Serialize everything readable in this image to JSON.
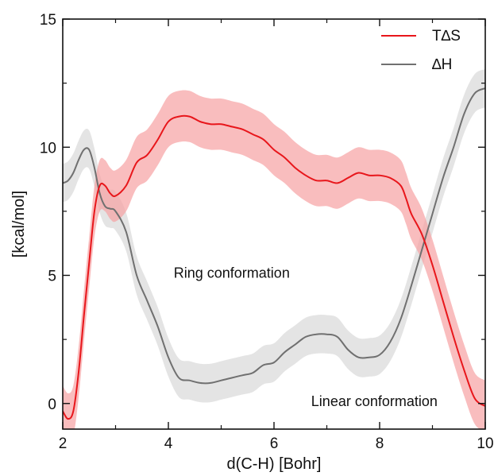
{
  "chart_data": {
    "type": "line",
    "xlabel": "d(C-H) [Bohr]",
    "ylabel": "[kcal/mol]",
    "xlim": [
      2,
      10
    ],
    "ylim": [
      -1,
      15
    ],
    "x_ticks": [
      "2",
      "4",
      "6",
      "8",
      "10"
    ],
    "y_ticks": [
      "0",
      "5",
      "10",
      "15"
    ],
    "grid": false,
    "legend_position": "top-right",
    "annotations": [
      "Ring conformation",
      "Linear conformation"
    ],
    "series": [
      {
        "name": "T∆S",
        "color": "#e8161b",
        "band_color": "#f6a1a3",
        "x": [
          2.0,
          2.1,
          2.2,
          2.3,
          2.4,
          2.5,
          2.6,
          2.7,
          2.8,
          2.9,
          3.0,
          3.2,
          3.4,
          3.6,
          3.8,
          4.0,
          4.2,
          4.4,
          4.6,
          4.8,
          5.0,
          5.2,
          5.4,
          5.6,
          5.8,
          6.0,
          6.2,
          6.4,
          6.6,
          6.8,
          7.0,
          7.2,
          7.4,
          7.6,
          7.8,
          8.0,
          8.2,
          8.4,
          8.5,
          8.6,
          8.8,
          9.0,
          9.2,
          9.4,
          9.6,
          9.8,
          10.0
        ],
        "values": [
          -0.3,
          -0.6,
          -0.3,
          1.2,
          3.4,
          5.5,
          7.5,
          8.5,
          8.5,
          8.2,
          8.1,
          8.5,
          9.4,
          9.7,
          10.3,
          11.0,
          11.2,
          11.2,
          11.0,
          10.9,
          10.9,
          10.8,
          10.7,
          10.5,
          10.3,
          9.9,
          9.6,
          9.2,
          8.9,
          8.7,
          8.7,
          8.6,
          8.8,
          9.0,
          8.9,
          8.9,
          8.8,
          8.5,
          8.0,
          7.4,
          6.6,
          5.4,
          4.0,
          2.6,
          1.3,
          0.2,
          -0.1
        ],
        "band_width": 1.0
      },
      {
        "name": "∆H",
        "color": "#707070",
        "band_color": "#d9d9d9",
        "x": [
          2.0,
          2.1,
          2.2,
          2.3,
          2.4,
          2.5,
          2.6,
          2.7,
          2.8,
          2.9,
          3.0,
          3.2,
          3.4,
          3.6,
          3.8,
          4.0,
          4.2,
          4.4,
          4.6,
          4.8,
          5.0,
          5.2,
          5.4,
          5.6,
          5.8,
          6.0,
          6.2,
          6.4,
          6.6,
          6.8,
          7.0,
          7.2,
          7.4,
          7.6,
          7.8,
          8.0,
          8.2,
          8.4,
          8.6,
          8.8,
          9.0,
          9.2,
          9.4,
          9.6,
          9.8,
          10.0
        ],
        "values": [
          8.6,
          8.7,
          9.0,
          9.5,
          9.9,
          9.9,
          9.2,
          8.2,
          7.7,
          7.6,
          7.5,
          6.7,
          5.0,
          4.0,
          3.0,
          1.8,
          1.0,
          0.9,
          0.8,
          0.8,
          0.9,
          1.0,
          1.1,
          1.2,
          1.5,
          1.6,
          2.0,
          2.3,
          2.6,
          2.7,
          2.7,
          2.6,
          2.1,
          1.8,
          1.8,
          1.9,
          2.4,
          3.3,
          4.6,
          6.0,
          7.4,
          8.8,
          10.0,
          11.3,
          12.1,
          12.3
        ],
        "band_width": 0.75
      }
    ]
  }
}
